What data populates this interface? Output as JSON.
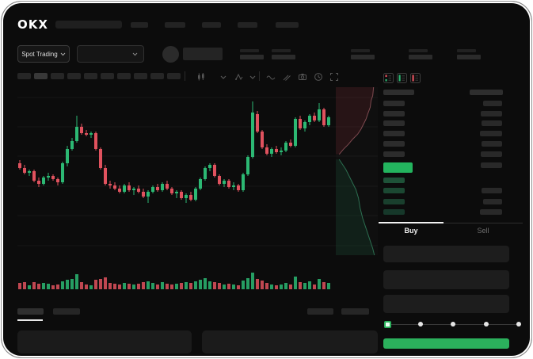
{
  "colors": {
    "up": "#2cb873",
    "down": "#e0525e",
    "buy_button": "#2bb05c",
    "last_price": "#23b45e",
    "ask_row_bar": "#292929",
    "book_bar": "#2c2c2c",
    "bid_row_greens": [
      "#1e5238",
      "#1b4832",
      "#193f2d",
      "#16382a"
    ]
  },
  "header": {
    "logo": "OKX"
  },
  "subnav": {
    "market_selector": "Spot Trading"
  },
  "toolbar": {
    "icons": [
      "chart-type",
      "chevron-down",
      "indicators",
      "chevron-down",
      "line-style",
      "draw",
      "camera",
      "history",
      "fullscreen"
    ]
  },
  "orderbook": {
    "layout_icons": [
      "combined",
      "bids",
      "asks"
    ],
    "asks": {
      "rows": 6,
      "right_widths": [
        24,
        27,
        26,
        28,
        26,
        27
      ]
    },
    "last_price_row": {
      "left_width": 37,
      "right_width": 27
    },
    "bids": {
      "rows": 4,
      "right_widths": [
        0,
        26,
        24,
        28
      ]
    }
  },
  "order_form": {
    "buy_tab": "Buy",
    "sell_tab": "Sell",
    "slider_stops": 5,
    "active_stop": 0
  },
  "chart": {
    "type": "candlestick",
    "candles": [
      [
        62,
        64,
        58,
        59
      ],
      [
        59,
        61,
        55,
        56
      ],
      [
        56,
        58,
        54,
        57
      ],
      [
        57,
        58,
        50,
        51
      ],
      [
        51,
        53,
        47,
        49
      ],
      [
        49,
        54,
        48,
        53
      ],
      [
        53,
        56,
        51,
        54
      ],
      [
        54,
        55,
        51,
        52
      ],
      [
        52,
        53,
        48,
        50
      ],
      [
        50,
        63,
        49,
        62
      ],
      [
        62,
        73,
        60,
        71
      ],
      [
        71,
        78,
        70,
        76
      ],
      [
        76,
        92,
        75,
        85
      ],
      [
        85,
        87,
        80,
        81
      ],
      [
        81,
        83,
        79,
        80
      ],
      [
        80,
        82,
        78,
        81
      ],
      [
        81,
        82,
        70,
        71
      ],
      [
        71,
        72,
        58,
        59
      ],
      [
        59,
        61,
        48,
        49
      ],
      [
        49,
        51,
        46,
        48
      ],
      [
        48,
        50,
        45,
        46
      ],
      [
        46,
        48,
        43,
        44
      ],
      [
        44,
        49,
        43,
        48
      ],
      [
        48,
        50,
        44,
        45
      ],
      [
        45,
        47,
        42,
        46
      ],
      [
        46,
        48,
        43,
        44
      ],
      [
        44,
        46,
        40,
        41
      ],
      [
        41,
        45,
        37,
        44
      ],
      [
        44,
        48,
        43,
        47
      ],
      [
        47,
        49,
        44,
        45
      ],
      [
        45,
        50,
        44,
        49
      ],
      [
        49,
        51,
        45,
        46
      ],
      [
        46,
        47,
        42,
        43
      ],
      [
        43,
        45,
        40,
        44
      ],
      [
        44,
        45,
        39,
        40
      ],
      [
        40,
        43,
        37,
        42
      ],
      [
        42,
        44,
        38,
        39
      ],
      [
        39,
        47,
        38,
        46
      ],
      [
        46,
        53,
        45,
        52
      ],
      [
        52,
        60,
        51,
        59
      ],
      [
        59,
        62,
        57,
        61
      ],
      [
        61,
        62,
        53,
        54
      ],
      [
        54,
        55,
        48,
        49
      ],
      [
        49,
        52,
        47,
        51
      ],
      [
        51,
        52,
        46,
        47
      ],
      [
        47,
        50,
        45,
        48
      ],
      [
        48,
        49,
        44,
        45
      ],
      [
        45,
        56,
        44,
        55
      ],
      [
        55,
        67,
        54,
        66
      ],
      [
        66,
        101,
        65,
        94
      ],
      [
        93,
        95,
        81,
        82
      ],
      [
        82,
        83,
        71,
        72
      ],
      [
        72,
        74,
        67,
        68
      ],
      [
        68,
        72,
        66,
        71
      ],
      [
        71,
        73,
        68,
        69
      ],
      [
        69,
        72,
        67,
        70
      ],
      [
        70,
        76,
        69,
        75
      ],
      [
        75,
        77,
        72,
        73
      ],
      [
        73,
        91,
        72,
        90
      ],
      [
        90,
        92,
        83,
        84
      ],
      [
        84,
        89,
        82,
        88
      ],
      [
        88,
        93,
        86,
        92
      ],
      [
        92,
        94,
        88,
        89
      ],
      [
        89,
        100,
        88,
        96
      ],
      [
        96,
        97,
        85,
        86
      ],
      [
        86,
        92,
        85,
        91
      ]
    ],
    "volumes": [
      8,
      9,
      5,
      9,
      7,
      8,
      7,
      5,
      6,
      10,
      12,
      13,
      19,
      9,
      6,
      5,
      12,
      13,
      15,
      8,
      7,
      6,
      8,
      7,
      6,
      7,
      9,
      10,
      8,
      6,
      9,
      7,
      6,
      7,
      8,
      9,
      8,
      10,
      12,
      14,
      10,
      9,
      8,
      6,
      7,
      6,
      5,
      11,
      14,
      21,
      13,
      11,
      8,
      6,
      5,
      6,
      8,
      6,
      16,
      9,
      8,
      10,
      6,
      13,
      9,
      8
    ]
  },
  "depth": {
    "asks": [
      [
        0.9,
        0.0
      ],
      [
        0.88,
        0.05
      ],
      [
        0.84,
        0.08
      ],
      [
        0.82,
        0.12
      ],
      [
        0.76,
        0.16
      ],
      [
        0.72,
        0.19
      ],
      [
        0.66,
        0.22
      ],
      [
        0.6,
        0.25
      ],
      [
        0.52,
        0.28
      ],
      [
        0.4,
        0.31
      ],
      [
        0.3,
        0.34
      ],
      [
        0.18,
        0.37
      ],
      [
        0.08,
        0.4
      ]
    ],
    "bids": [
      [
        0.08,
        0.43
      ],
      [
        0.16,
        0.46
      ],
      [
        0.24,
        0.49
      ],
      [
        0.32,
        0.53
      ],
      [
        0.4,
        0.57
      ],
      [
        0.48,
        0.61
      ],
      [
        0.54,
        0.66
      ],
      [
        0.58,
        0.72
      ],
      [
        0.64,
        0.78
      ],
      [
        0.72,
        0.84
      ],
      [
        0.8,
        0.9
      ],
      [
        0.88,
        0.96
      ],
      [
        0.92,
        1.0
      ]
    ]
  }
}
